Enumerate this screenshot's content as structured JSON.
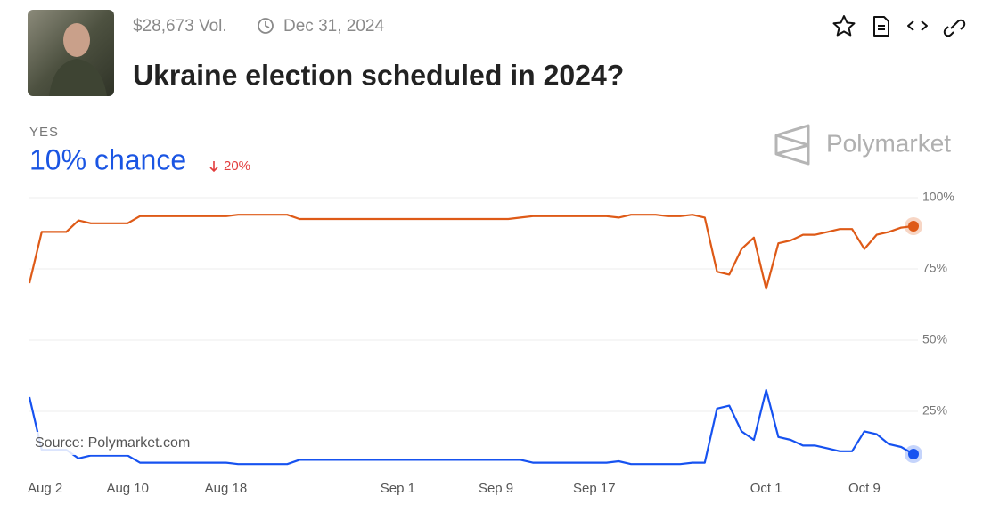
{
  "header": {
    "volume": "$28,673 Vol.",
    "date": "Dec 31, 2024",
    "title": "Ukraine election scheduled in 2024?"
  },
  "summary": {
    "outcome": "YES",
    "chance": "10% chance",
    "change": "20%"
  },
  "logo": "Polymarket",
  "source": "Source: Polymarket.com",
  "chart_data": {
    "type": "line",
    "categories": [
      "Aug 2",
      null,
      null,
      null,
      null,
      null,
      null,
      null,
      "Aug 10",
      null,
      null,
      null,
      null,
      null,
      null,
      null,
      "Aug 18",
      null,
      null,
      null,
      null,
      null,
      null,
      null,
      null,
      null,
      null,
      null,
      null,
      null,
      "Sep 1",
      null,
      null,
      null,
      null,
      null,
      null,
      null,
      "Sep 9",
      null,
      null,
      null,
      null,
      null,
      null,
      null,
      "Sep 17",
      null,
      null,
      null,
      null,
      null,
      null,
      null,
      null,
      null,
      null,
      null,
      null,
      null,
      "Oct 1",
      null,
      null,
      null,
      null,
      null,
      null,
      null,
      "Oct 9",
      null,
      null,
      null,
      null
    ],
    "series": [
      {
        "color": "#de5a17",
        "values": [
          70,
          88,
          88,
          88,
          92,
          91,
          91,
          91,
          91,
          93.5,
          93.5,
          93.5,
          93.5,
          93.5,
          93.5,
          93.5,
          93.5,
          94,
          94,
          94,
          94,
          94,
          92.5,
          92.5,
          92.5,
          92.5,
          92.5,
          92.5,
          92.5,
          92.5,
          92.5,
          92.5,
          92.5,
          92.5,
          92.5,
          92.5,
          92.5,
          92.5,
          92.5,
          92.5,
          93,
          93.5,
          93.5,
          93.5,
          93.5,
          93.5,
          93.5,
          93.5,
          93,
          94,
          94,
          94,
          93.5,
          93.5,
          94,
          93,
          74,
          73,
          82,
          86,
          68,
          84,
          85,
          87,
          87,
          88,
          89,
          89,
          82,
          87,
          88,
          89.5,
          90
        ]
      },
      {
        "color": "#1652f0",
        "values": [
          30,
          11.5,
          11.5,
          11.5,
          8.5,
          9.5,
          9.5,
          9.5,
          9.5,
          7,
          7,
          7,
          7,
          7,
          7,
          7,
          7,
          6.5,
          6.5,
          6.5,
          6.5,
          6.5,
          8,
          8,
          8,
          8,
          8,
          8,
          8,
          8,
          8,
          8,
          8,
          8,
          8,
          8,
          8,
          8,
          8,
          8,
          8,
          7,
          7,
          7,
          7,
          7,
          7,
          7,
          7.5,
          6.5,
          6.5,
          6.5,
          6.5,
          6.5,
          7,
          7,
          26,
          27,
          18,
          15,
          32.5,
          16,
          15,
          13,
          13,
          12,
          11,
          11,
          18,
          17,
          13.5,
          12.5,
          10
        ]
      }
    ],
    "ylim": [
      0,
      100
    ],
    "yticks": [
      {
        "value": 25,
        "label": "25%"
      },
      {
        "value": 50,
        "label": "50%"
      },
      {
        "value": 75,
        "label": "75%"
      },
      {
        "value": 100,
        "label": "100%"
      }
    ],
    "grid": true
  }
}
